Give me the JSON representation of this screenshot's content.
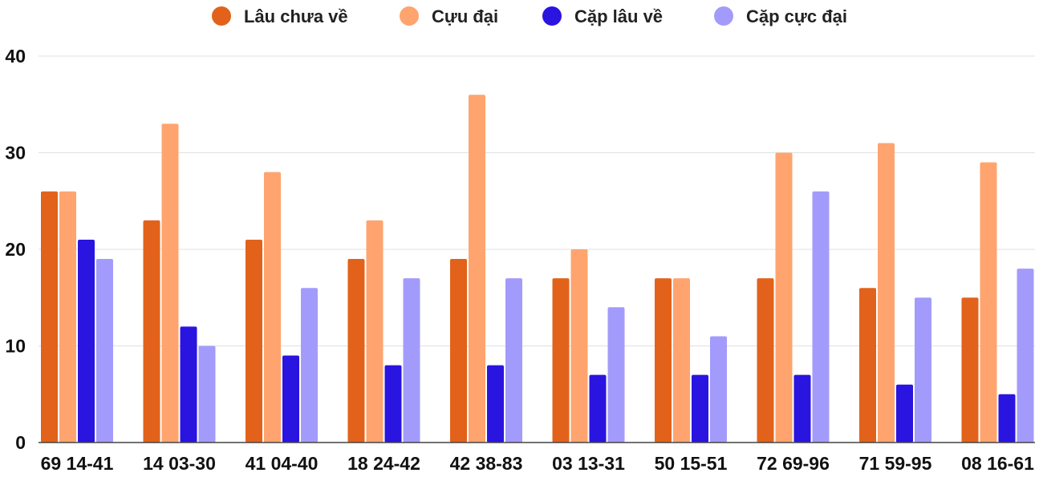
{
  "chart_data": {
    "type": "bar",
    "title": "",
    "xlabel": "",
    "ylabel": "",
    "ylim": [
      0,
      40
    ],
    "yticks": [
      0,
      10,
      20,
      30,
      40
    ],
    "grid": true,
    "legend_position": "top",
    "categories": [
      "69 14-41",
      "14 03-30",
      "41 04-40",
      "18 24-42",
      "42 38-83",
      "03 13-31",
      "50 15-51",
      "72 69-96",
      "71 59-95",
      "08 16-61"
    ],
    "series": [
      {
        "name": "Lâu chưa về",
        "color": "#e2621b",
        "values": [
          26,
          23,
          21,
          19,
          19,
          17,
          17,
          17,
          16,
          15
        ]
      },
      {
        "name": "Cựu đại",
        "color": "#ffa46e",
        "values": [
          26,
          33,
          28,
          23,
          36,
          20,
          17,
          30,
          31,
          29
        ]
      },
      {
        "name": "Cặp lâu về",
        "color": "#2a14e0",
        "values": [
          21,
          12,
          9,
          8,
          8,
          7,
          7,
          7,
          6,
          5
        ]
      },
      {
        "name": "Cặp cực đại",
        "color": "#a39bfb",
        "values": [
          19,
          10,
          16,
          17,
          17,
          14,
          11,
          26,
          15,
          18
        ]
      }
    ]
  }
}
